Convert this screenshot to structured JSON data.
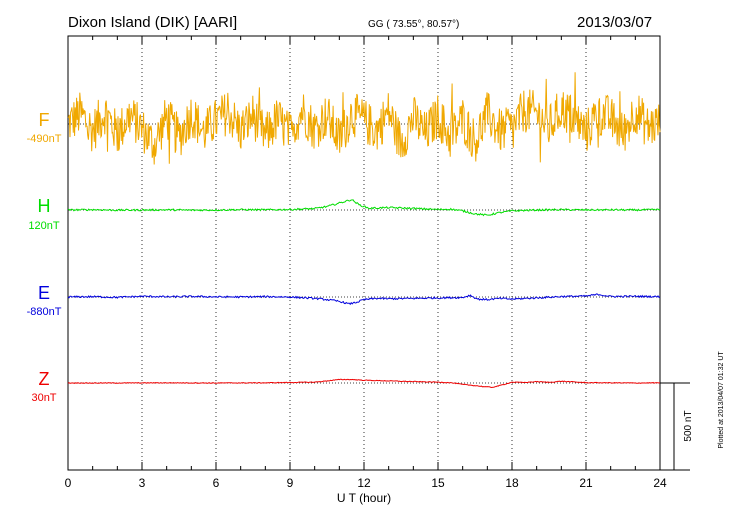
{
  "header": {
    "station": "Dixon Island (DIK)  [AARI]",
    "coords": "GG ( 73.55°,  80.57°)",
    "date": "2013/03/07"
  },
  "plot_stamp": "Plotted at 2013/04/07 01:32 UT",
  "chart_data": {
    "type": "line",
    "title": "Dixon Island (DIK)  [AARI]",
    "xlabel": "U T (hour)",
    "xlim": [
      0,
      24
    ],
    "xticks": [
      "0",
      "3",
      "6",
      "9",
      "12",
      "15",
      "18",
      "21",
      "24"
    ],
    "scale_bar": {
      "label": "500 nT",
      "value_nT": 500
    },
    "series": [
      {
        "name": "F",
        "baseline": "-490nT",
        "color": "#f0a800",
        "x": [
          0,
          0.5,
          1,
          1.5,
          2,
          2.5,
          3,
          3.5,
          4,
          4.5,
          5,
          5.5,
          6,
          6.5,
          7,
          7.5,
          8,
          8.5,
          9,
          9.5,
          10,
          10.5,
          11,
          11.5,
          12,
          12.5,
          13,
          13.5,
          14,
          14.5,
          15,
          15.5,
          16,
          16.5,
          17,
          17.5,
          18,
          18.5,
          19,
          19.5,
          20,
          20.5,
          21,
          21.5,
          22,
          22.5,
          23,
          23.5,
          24
        ],
        "y": [
          0,
          60,
          -40,
          70,
          -60,
          50,
          -30,
          -120,
          40,
          -80,
          60,
          -50,
          20,
          70,
          -40,
          50,
          -70,
          30,
          -60,
          80,
          -30,
          50,
          -90,
          60,
          20,
          -40,
          70,
          -110,
          40,
          -60,
          50,
          -80,
          30,
          -100,
          60,
          -40,
          -30,
          80,
          60,
          -20,
          90,
          40,
          -50,
          70,
          30,
          -60,
          80,
          -20,
          10
        ],
        "noise_nT": 130
      },
      {
        "name": "H",
        "baseline": "120nT",
        "color": "#00dd00",
        "x": [
          0,
          1,
          2,
          3,
          4,
          5,
          6,
          7,
          8,
          9,
          10,
          10.5,
          11,
          11.5,
          11.8,
          12.2,
          13,
          14,
          15,
          15.5,
          16,
          16.5,
          17,
          17.5,
          18,
          19,
          20,
          21,
          22,
          23,
          24
        ],
        "y": [
          0,
          2,
          -1,
          0,
          1,
          -1,
          0,
          2,
          1,
          3,
          8,
          20,
          40,
          60,
          30,
          10,
          14,
          9,
          3,
          5,
          -5,
          -22,
          -30,
          -15,
          -5,
          0,
          2,
          0,
          1,
          0,
          2
        ],
        "noise_nT": 5
      },
      {
        "name": "E",
        "baseline": "-880nT",
        "color": "#0000dd",
        "x": [
          0,
          1,
          2,
          3,
          4,
          5,
          6,
          7,
          8,
          9,
          10,
          10.5,
          11,
          11.4,
          11.7,
          12,
          12.5,
          13,
          14,
          15,
          16,
          16.3,
          16.6,
          17,
          17.5,
          18,
          19,
          20,
          21,
          21.5,
          22,
          23,
          24
        ],
        "y": [
          0,
          2,
          -2,
          4,
          1,
          3,
          1,
          0,
          2,
          0,
          -8,
          -15,
          -25,
          -40,
          -30,
          -15,
          -8,
          -10,
          -8,
          -5,
          -3,
          10,
          -12,
          -15,
          -8,
          -12,
          -5,
          3,
          5,
          15,
          3,
          4,
          2
        ],
        "noise_nT": 5
      },
      {
        "name": "Z",
        "baseline": "30nT",
        "color": "#ee0000",
        "x": [
          0,
          2,
          4,
          6,
          8,
          9,
          10,
          10.5,
          11,
          11.5,
          12,
          13,
          14,
          15,
          15.5,
          16,
          16.5,
          16.8,
          17.2,
          17.5,
          18,
          18.5,
          19,
          19.5,
          20,
          21,
          22,
          23,
          24
        ],
        "y": [
          0,
          0,
          1,
          0,
          1,
          3,
          5,
          12,
          20,
          20,
          16,
          12,
          8,
          5,
          2,
          -8,
          -15,
          -20,
          -25,
          -15,
          5,
          3,
          8,
          4,
          10,
          2,
          1,
          0,
          1
        ],
        "noise_nT": 2
      }
    ]
  }
}
